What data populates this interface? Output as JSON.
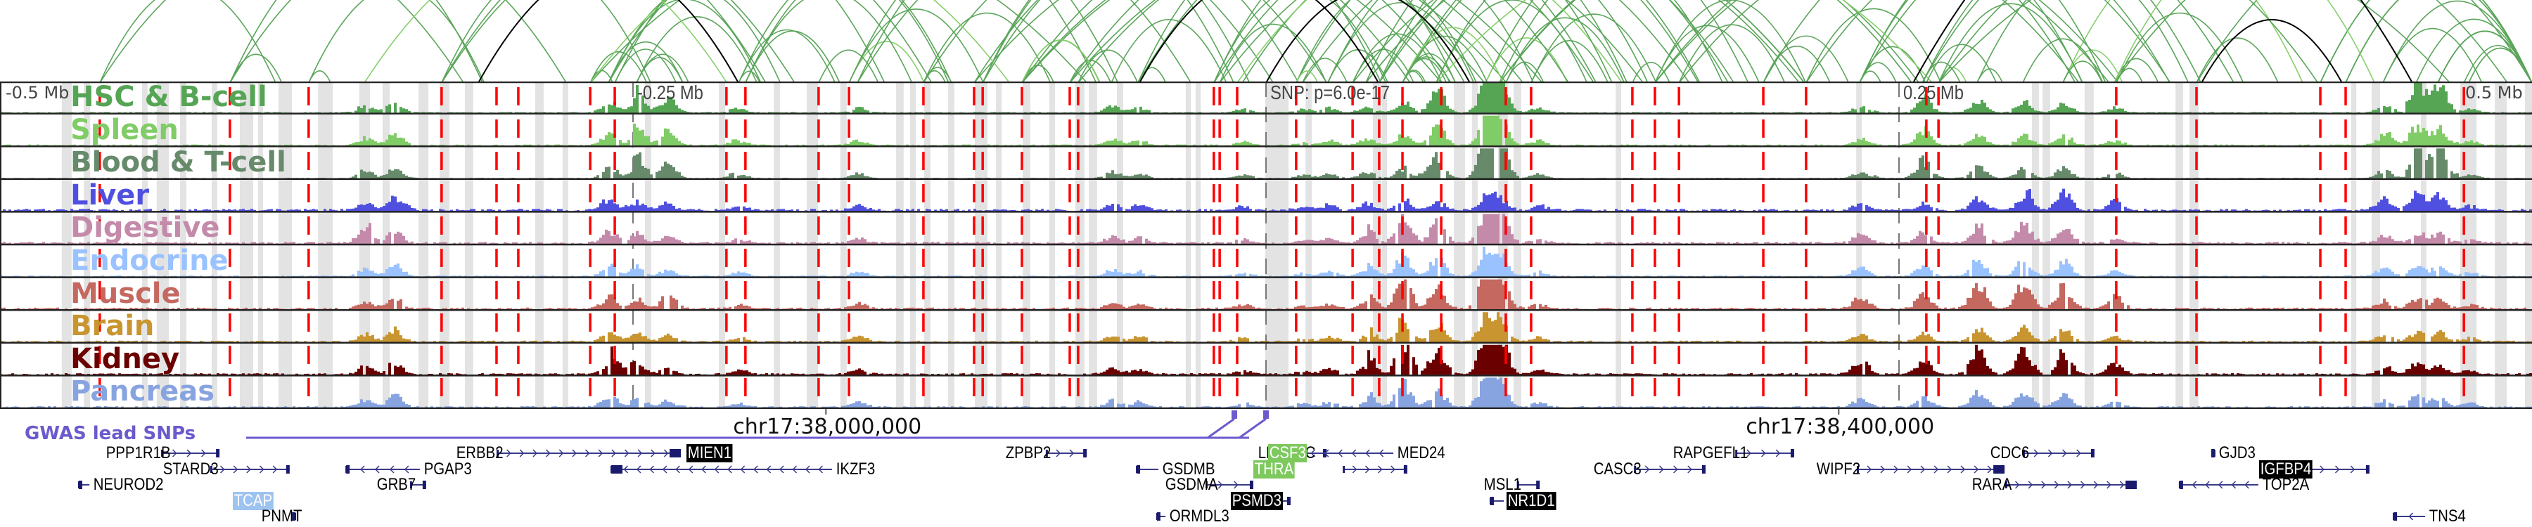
{
  "figure": {
    "axis_labels": [
      {
        "text": "-0.5 Mb",
        "offset_mb": -0.5
      },
      {
        "text": "-0.25 Mb",
        "offset_mb": -0.25
      },
      {
        "text": "SNP: p=6.0e-17",
        "offset_mb": 0
      },
      {
        "text": "0.25 Mb",
        "offset_mb": 0.25
      },
      {
        "text": "0.5 Mb",
        "offset_mb": 0.5
      }
    ],
    "chromosome_labels": [
      {
        "text": "chr17:38,000,000",
        "offset_mb": -0.1738
      },
      {
        "text": "chr17:38,400,000",
        "offset_mb": 0.2262
      }
    ],
    "gwas_label": "GWAS lead SNPs",
    "gwas_snps_offset_mb": [
      -0.0125,
      0.0
    ],
    "colors": {
      "red_dash": "#ff0000",
      "highlight_gray": "#e3e3e3",
      "gene_color": "#1a1a6e",
      "gwas_color": "#6a5acd",
      "arc_green": "#5aa55a",
      "arc_light_green": "#86cf6a",
      "arc_black": "#000000"
    }
  },
  "tracks": [
    {
      "name": "HSC & B-cell",
      "color": "#55a555"
    },
    {
      "name": "Spleen",
      "color": "#80cc66"
    },
    {
      "name": "Blood & T-cell",
      "color": "#668a6a"
    },
    {
      "name": "Liver",
      "color": "#5050e0"
    },
    {
      "name": "Digestive",
      "color": "#c48aaa"
    },
    {
      "name": "Endocrine",
      "color": "#99c2ff"
    },
    {
      "name": "Muscle",
      "color": "#c46860"
    },
    {
      "name": "Brain",
      "color": "#c89530"
    },
    {
      "name": "Kidney",
      "color": "#6b0000"
    },
    {
      "name": "Pancreas",
      "color": "#88a4e0"
    }
  ],
  "red_lines_offset_mb": [
    -0.4606,
    -0.4092,
    -0.3781,
    -0.3256,
    -0.3039,
    -0.2953,
    -0.2669,
    -0.2572,
    -0.2131,
    -0.2056,
    -0.1767,
    -0.1647,
    -0.1353,
    -0.1153,
    -0.1119,
    -0.0964,
    -0.0775,
    -0.0742,
    -0.0206,
    -0.0183,
    -0.0114,
    0.0119,
    0.0342,
    0.0447,
    0.0539,
    0.0692,
    0.0947,
    0.1047,
    0.1447,
    0.1536,
    0.1631,
    0.1964,
    0.2133,
    0.2608,
    0.2656,
    0.3358,
    0.3675,
    0.4164,
    0.4264,
    0.4731
  ],
  "gray_bands_offset_mb": [
    [
      -0.4756,
      -0.4717
    ],
    [
      -0.4669,
      -0.4644
    ],
    [
      -0.4439,
      -0.4417
    ],
    [
      -0.4381,
      -0.4333
    ],
    [
      -0.4289,
      -0.4264
    ],
    [
      -0.4164,
      -0.4142
    ],
    [
      -0.4053,
      -0.4
    ],
    [
      -0.3981,
      -0.3961
    ],
    [
      -0.39,
      -0.3847
    ],
    [
      -0.3744,
      -0.3686
    ],
    [
      -0.3581,
      -0.3539
    ],
    [
      -0.3489,
      -0.3461
    ],
    [
      -0.3347,
      -0.3308
    ],
    [
      -0.3264,
      -0.3225
    ],
    [
      -0.3164,
      -0.3131
    ],
    [
      -0.2886,
      -0.2853
    ],
    [
      -0.2778,
      -0.2756
    ],
    [
      -0.2453,
      -0.2428
    ],
    [
      -0.2161,
      -0.2136
    ],
    [
      -0.1944,
      -0.1919
    ],
    [
      -0.1814,
      -0.1769
    ],
    [
      -0.1681,
      -0.1656
    ],
    [
      -0.1461,
      -0.1431
    ],
    [
      -0.1406,
      -0.1383
    ],
    [
      -0.135,
      -0.1325
    ],
    [
      -0.1256,
      -0.1231
    ],
    [
      -0.115,
      -0.11
    ],
    [
      -0.1067,
      -0.1044
    ],
    [
      -0.0961,
      -0.0931
    ],
    [
      -0.0856,
      -0.0833
    ],
    [
      -0.0753,
      -0.0717
    ],
    [
      -0.07,
      -0.0667
    ],
    [
      -0.0589,
      -0.0564
    ],
    [
      -0.0317,
      -0.0297
    ],
    [
      -0.0278,
      -0.0258
    ],
    [
      -0.0003,
      0.0089
    ],
    [
      0.0156,
      0.0181
    ],
    [
      0.0422,
      0.0456
    ],
    [
      0.0458,
      0.0478
    ],
    [
      0.0742,
      0.0786
    ],
    [
      0.0814,
      0.0836
    ],
    [
      0.0917,
      0.0956
    ],
    [
      0.0978,
      0.1008
    ],
    [
      0.1381,
      0.1403
    ],
    [
      0.2331,
      0.2353
    ],
    [
      0.3025,
      0.3053
    ],
    [
      0.3067,
      0.3097
    ],
    [
      0.3233,
      0.3269
    ],
    [
      0.3592,
      0.3622
    ],
    [
      0.3647,
      0.3683
    ],
    [
      0.4286,
      0.4306
    ],
    [
      0.4367,
      0.44
    ],
    [
      0.4561,
      0.4583
    ],
    [
      0.4717,
      0.4731
    ],
    [
      0.4717,
      0.4781
    ],
    [
      0.4853,
      0.49
    ],
    [
      0.4972,
      0.5
    ]
  ],
  "gene_rows": [
    [
      {
        "name": "PPP1R1B",
        "start_mb": -0.4361,
        "end_mb": -0.4133,
        "strand": "+",
        "label_side": "left"
      },
      {
        "name": "ERBB2",
        "start_mb": -0.3036,
        "end_mb": -0.2311,
        "strand": "+",
        "label_side": "left"
      },
      {
        "name": "MIEN1",
        "start_mb": -0.23,
        "end_mb": -0.23,
        "strand": "+",
        "label_side": "right",
        "highlight": "black",
        "label_only": true
      },
      {
        "name": "ZPBP2",
        "start_mb": -0.0867,
        "end_mb": -0.0708,
        "strand": "+",
        "label_side": "left"
      },
      {
        "name": "LRRC3C",
        "start_mb": 0.0158,
        "end_mb": 0.0239,
        "strand": "+",
        "label_side": "left"
      },
      {
        "name": "CSF3",
        "start_mb": -0.0003,
        "end_mb": -0.0003,
        "strand": "+",
        "label_side": "right",
        "highlight": "green",
        "label_only": true
      },
      {
        "name": "MED24",
        "start_mb": 0.0017,
        "end_mb": 0.0503,
        "strand": "-",
        "label_side": "right"
      },
      {
        "name": "RAPGEFL1",
        "start_mb": 0.1856,
        "end_mb": 0.2086,
        "strand": "+",
        "label_side": "left"
      },
      {
        "name": "CDC6",
        "start_mb": 0.2992,
        "end_mb": 0.3272,
        "strand": "+",
        "label_side": "left"
      },
      {
        "name": "GJD3",
        "start_mb": 0.3744,
        "end_mb": 0.3747,
        "strand": "+",
        "label_side": "right"
      }
    ],
    [
      {
        "name": "STARD3",
        "start_mb": -0.4167,
        "end_mb": -0.3856,
        "strand": "+",
        "label_side": "left"
      },
      {
        "name": "PGAP3",
        "start_mb": -0.3633,
        "end_mb": -0.3342,
        "strand": "-",
        "label_side": "right"
      },
      {
        "name": "IKZF3",
        "start_mb": -0.2586,
        "end_mb": -0.1714,
        "strand": "-",
        "label_side": "right"
      },
      {
        "name": "GSDMB",
        "start_mb": -0.0511,
        "end_mb": -0.0425,
        "strand": "-",
        "label_side": "right"
      },
      {
        "name": "THRA",
        "start_mb": -0.0061,
        "end_mb": -0.0061,
        "strand": "+",
        "label_side": "right",
        "highlight": "green",
        "label_only": true
      },
      {
        "name": "THRA_body",
        "display": false,
        "start_mb": 0.0306,
        "end_mb": 0.0558,
        "strand": "+",
        "label_side": "none"
      },
      {
        "name": "CASC3",
        "start_mb": 0.1456,
        "end_mb": 0.1736,
        "strand": "+",
        "label_side": "left"
      },
      {
        "name": "WIPF2",
        "start_mb": 0.2336,
        "end_mb": 0.2917,
        "strand": "+",
        "label_side": "left"
      },
      {
        "name": "IGFBP4",
        "start_mb": 0.4117,
        "end_mb": 0.4358,
        "strand": "+",
        "label_side": "left",
        "highlight": "black"
      }
    ],
    [
      {
        "name": "NEUROD2",
        "start_mb": -0.4689,
        "end_mb": -0.4647,
        "strand": "-",
        "label_side": "right"
      },
      {
        "name": "GRB7",
        "start_mb": -0.3378,
        "end_mb": -0.3317,
        "strand": "+",
        "label_side": "left"
      },
      {
        "name": "GSDMA",
        "start_mb": -0.0236,
        "end_mb": -0.005,
        "strand": "+",
        "label_side": "left"
      },
      {
        "name": "MSL1",
        "start_mb": 0.0994,
        "end_mb": 0.1081,
        "strand": "+",
        "label_side": "left"
      },
      {
        "name": "RARA",
        "start_mb": 0.2922,
        "end_mb": 0.3439,
        "strand": "+",
        "label_side": "left"
      },
      {
        "name": "TOP2A",
        "start_mb": 0.3608,
        "end_mb": 0.3919,
        "strand": "-",
        "label_side": "right"
      }
    ],
    [
      {
        "name": "TCAP",
        "start_mb": -0.3942,
        "end_mb": -0.3933,
        "strand": "+",
        "label_side": "left",
        "highlight": "blue"
      },
      {
        "name": "PSMD3",
        "start_mb": 0.0026,
        "end_mb": 0.0097,
        "strand": "+",
        "label_side": "left",
        "highlight": "black"
      },
      {
        "name": "NR1D1",
        "start_mb": 0.0886,
        "end_mb": 0.0939,
        "strand": "-",
        "label_side": "right",
        "highlight": "black"
      }
    ],
    [
      {
        "name": "PNMT",
        "start_mb": -0.3836,
        "end_mb": -0.3833,
        "strand": "+",
        "label_side": "left"
      },
      {
        "name": "ORMDL3",
        "start_mb": -0.0431,
        "end_mb": -0.0397,
        "strand": "-",
        "label_side": "right"
      },
      {
        "name": "TNS4",
        "start_mb": 0.4453,
        "end_mb": 0.4578,
        "strand": "-",
        "label_side": "right"
      }
    ]
  ],
  "peaks_offset_mb": [
    [
      -0.3561,
      0.6
    ],
    [
      -0.3444,
      0.9
    ],
    [
      -0.2597,
      0.9
    ],
    [
      -0.2486,
      0.7
    ],
    [
      -0.2083,
      0.3
    ],
    [
      -0.1614,
      0.4
    ],
    [
      -0.2367,
      0.5
    ],
    [
      -0.0611,
      0.5
    ],
    [
      -0.0506,
      0.4
    ],
    [
      -0.0094,
      0.3
    ],
    [
      0.0144,
      0.25
    ],
    [
      0.0244,
      0.4
    ],
    [
      0.0394,
      0.5
    ],
    [
      0.0539,
      0.8
    ],
    [
      0.0672,
      0.6
    ],
    [
      0.0867,
      1.0
    ],
    [
      0.0922,
      0.8
    ],
    [
      0.1072,
      0.35
    ],
    [
      0.2344,
      0.5
    ],
    [
      0.2592,
      0.5
    ],
    [
      0.2808,
      0.9
    ],
    [
      0.2989,
      0.9
    ],
    [
      0.3147,
      0.8
    ],
    [
      0.335,
      0.4
    ],
    [
      0.4411,
      0.6
    ],
    [
      0.4542,
      0.8
    ],
    [
      0.4628,
      0.7
    ],
    [
      0.475,
      0.3
    ]
  ],
  "arcs": {
    "count_green": 160,
    "count_black": 5
  }
}
